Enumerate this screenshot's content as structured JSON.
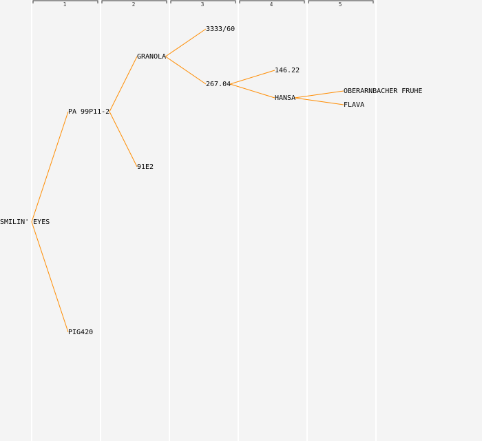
{
  "generations": [
    "1",
    "2",
    "3",
    "4",
    "5"
  ],
  "colors": {
    "edge": "#ff8c00",
    "background": "#f4f4f4",
    "separator": "#ffffff",
    "text": "#000000"
  },
  "nodes": [
    {
      "id": "n0",
      "label": "SMILIN' EYES",
      "gen": 0,
      "row": 16
    },
    {
      "id": "n1",
      "label": "PA 99P11-2",
      "gen": 1,
      "row": 8
    },
    {
      "id": "n2",
      "label": "PIG420",
      "gen": 1,
      "row": 24
    },
    {
      "id": "n3",
      "label": "GRANOLA",
      "gen": 2,
      "row": 4
    },
    {
      "id": "n4",
      "label": "91E2",
      "gen": 2,
      "row": 12
    },
    {
      "id": "n5",
      "label": "3333/60",
      "gen": 3,
      "row": 2
    },
    {
      "id": "n6",
      "label": "267.04",
      "gen": 3,
      "row": 6
    },
    {
      "id": "n7",
      "label": "146.22",
      "gen": 4,
      "row": 5
    },
    {
      "id": "n8",
      "label": "HANSA",
      "gen": 4,
      "row": 7
    },
    {
      "id": "n9",
      "label": "OBERARNBACHER FRUHE",
      "gen": 5,
      "row": 6.5
    },
    {
      "id": "n10",
      "label": "FLAVA",
      "gen": 5,
      "row": 7.5
    }
  ],
  "edges": [
    [
      "n0",
      "n1"
    ],
    [
      "n0",
      "n2"
    ],
    [
      "n1",
      "n3"
    ],
    [
      "n1",
      "n4"
    ],
    [
      "n3",
      "n5"
    ],
    [
      "n3",
      "n6"
    ],
    [
      "n6",
      "n7"
    ],
    [
      "n6",
      "n8"
    ],
    [
      "n8",
      "n9"
    ],
    [
      "n8",
      "n10"
    ]
  ]
}
